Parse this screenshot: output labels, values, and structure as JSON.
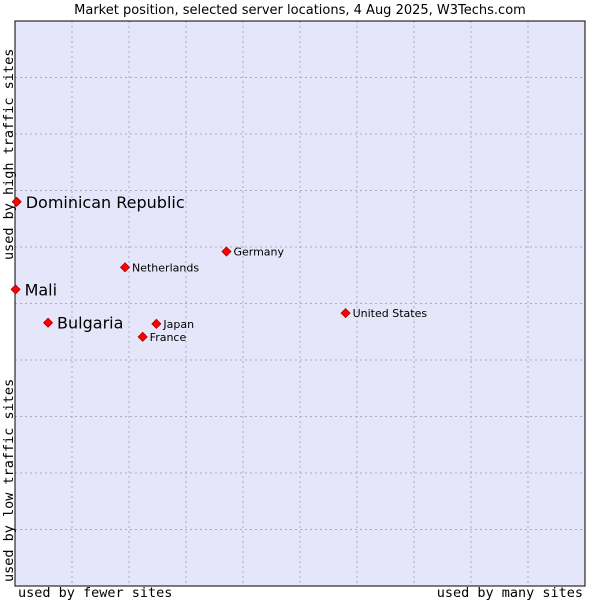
{
  "chart_data": {
    "type": "scatter",
    "title": "Market position, selected server locations, 4 Aug 2025, W3Techs.com",
    "x_axis": {
      "low_label": "used by fewer sites",
      "high_label": "used by many sites"
    },
    "y_axis": {
      "low_label": "used by low traffic sites",
      "high_label": "used by high traffic sites"
    },
    "xlim": [
      0,
      100
    ],
    "ylim": [
      0,
      100
    ],
    "grid": true,
    "colors": {
      "plot_bg": "#e6e6fa",
      "grid": "#a9a9c8",
      "point": "#ff0000",
      "point_stroke": "#b00000",
      "frame": "#000000"
    },
    "points": [
      {
        "label": "Dominican Republic",
        "x": 0.3,
        "y": 68.0,
        "size": "large"
      },
      {
        "label": "Mali",
        "x": 0.1,
        "y": 52.5,
        "size": "large"
      },
      {
        "label": "Bulgaria",
        "x": 5.8,
        "y": 46.6,
        "size": "large"
      },
      {
        "label": "Germany",
        "x": 37.1,
        "y": 59.2,
        "size": "small"
      },
      {
        "label": "Netherlands",
        "x": 19.3,
        "y": 56.4,
        "size": "small"
      },
      {
        "label": "United States",
        "x": 58.0,
        "y": 48.3,
        "size": "small"
      },
      {
        "label": "Japan",
        "x": 24.8,
        "y": 46.4,
        "size": "small"
      },
      {
        "label": "France",
        "x": 22.4,
        "y": 44.1,
        "size": "small"
      }
    ]
  }
}
